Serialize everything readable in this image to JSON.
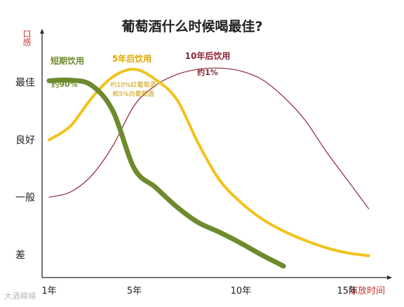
{
  "chart_data": {
    "type": "line",
    "title": "葡萄酒什么时候喝最佳?",
    "ylabel": "口感",
    "xlabel": "陈放时间",
    "x_ticks": [
      {
        "label": "1年",
        "value": 1
      },
      {
        "label": "5年",
        "value": 5
      },
      {
        "label": "10年",
        "value": 10
      },
      {
        "label": "15年",
        "value": 15
      }
    ],
    "y_ticks": [
      {
        "label": "最佳",
        "value": 4
      },
      {
        "label": "良好",
        "value": 3
      },
      {
        "label": "一般",
        "value": 2
      },
      {
        "label": "差",
        "value": 1
      }
    ],
    "xlim": [
      1,
      17
    ],
    "ylim": [
      0.6,
      4.9
    ],
    "grid": false,
    "legend": "none",
    "series": [
      {
        "name": "短期饮用",
        "note": "约90%",
        "color": "#6e8a2e",
        "x": [
          1,
          2,
          3,
          4,
          5,
          6,
          7,
          8,
          9,
          10,
          11,
          12
        ],
        "y": [
          4.03,
          4.04,
          3.95,
          3.5,
          2.5,
          2.17,
          1.83,
          1.56,
          1.39,
          1.2,
          0.99,
          0.8
        ]
      },
      {
        "name": "5年后饮用",
        "note": "约10%红葡萄酒\n和5%白葡萄酒",
        "color": "#f1c21b",
        "x": [
          1,
          2,
          3,
          4,
          5,
          6,
          7,
          8,
          9,
          10,
          11,
          12,
          13,
          14,
          15,
          16
        ],
        "y": [
          3,
          3.24,
          3.73,
          4.1,
          4.23,
          4.05,
          3.7,
          2.94,
          2.3,
          1.91,
          1.62,
          1.41,
          1.25,
          1.12,
          1.03,
          0.98
        ]
      },
      {
        "name": "10年后饮用",
        "note": "约1%",
        "color": "#8b2434",
        "x": [
          1,
          2,
          3,
          4,
          5,
          6,
          7,
          8,
          9,
          10,
          11,
          12,
          13,
          14,
          15,
          16
        ],
        "y": [
          2,
          2.09,
          2.38,
          2.9,
          3.6,
          3.95,
          4.14,
          4.23,
          4.25,
          4.2,
          4.05,
          3.75,
          3.35,
          2.8,
          2.3,
          1.8
        ]
      }
    ]
  },
  "watermark": "大酒睛睛",
  "colors": {
    "axis": "#2b2b2b",
    "xlabel": "#c83232",
    "ylabel": "#c83232",
    "title": "#222222",
    "tick": "#222222"
  }
}
